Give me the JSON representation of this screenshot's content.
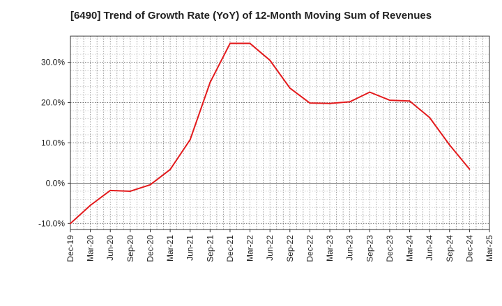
{
  "chart_data": {
    "type": "line",
    "title": "[6490]  Trend of Growth Rate (YoY) of 12-Month Moving Sum of Revenues",
    "xlabel": "",
    "ylabel": "",
    "ylim": [
      -11.5,
      36.5
    ],
    "y_ticks": [
      -10,
      0,
      10,
      20,
      30
    ],
    "y_tick_labels": [
      "-10.0%",
      "0.0%",
      "10.0%",
      "20.0%",
      "30.0%"
    ],
    "x_tick_labels": [
      "Dec-19",
      "Mar-20",
      "Jun-20",
      "Sep-20",
      "Dec-20",
      "Mar-21",
      "Jun-21",
      "Sep-21",
      "Dec-21",
      "Mar-22",
      "Jun-22",
      "Sep-22",
      "Dec-22",
      "Mar-23",
      "Jun-23",
      "Sep-23",
      "Dec-23",
      "Mar-24",
      "Jun-24",
      "Sep-24",
      "Dec-24",
      "Mar-25"
    ],
    "grid": true,
    "series": [
      {
        "color": "#e31a1c",
        "x": [
          "Dec-19",
          "Mar-20",
          "Jun-20",
          "Sep-20",
          "Dec-20",
          "Mar-21",
          "Jun-21",
          "Sep-21",
          "Dec-21",
          "Mar-22",
          "Jun-22",
          "Sep-22",
          "Dec-22",
          "Mar-23",
          "Jun-23",
          "Sep-23",
          "Dec-23",
          "Mar-24",
          "Jun-24",
          "Sep-24",
          "Dec-24"
        ],
        "values": [
          -10.0,
          -5.5,
          -1.8,
          -2.0,
          -0.4,
          3.4,
          10.8,
          25.0,
          34.7,
          34.7,
          30.5,
          23.6,
          19.9,
          19.8,
          20.2,
          22.6,
          20.6,
          20.4,
          16.3,
          9.5,
          3.5
        ]
      }
    ]
  }
}
